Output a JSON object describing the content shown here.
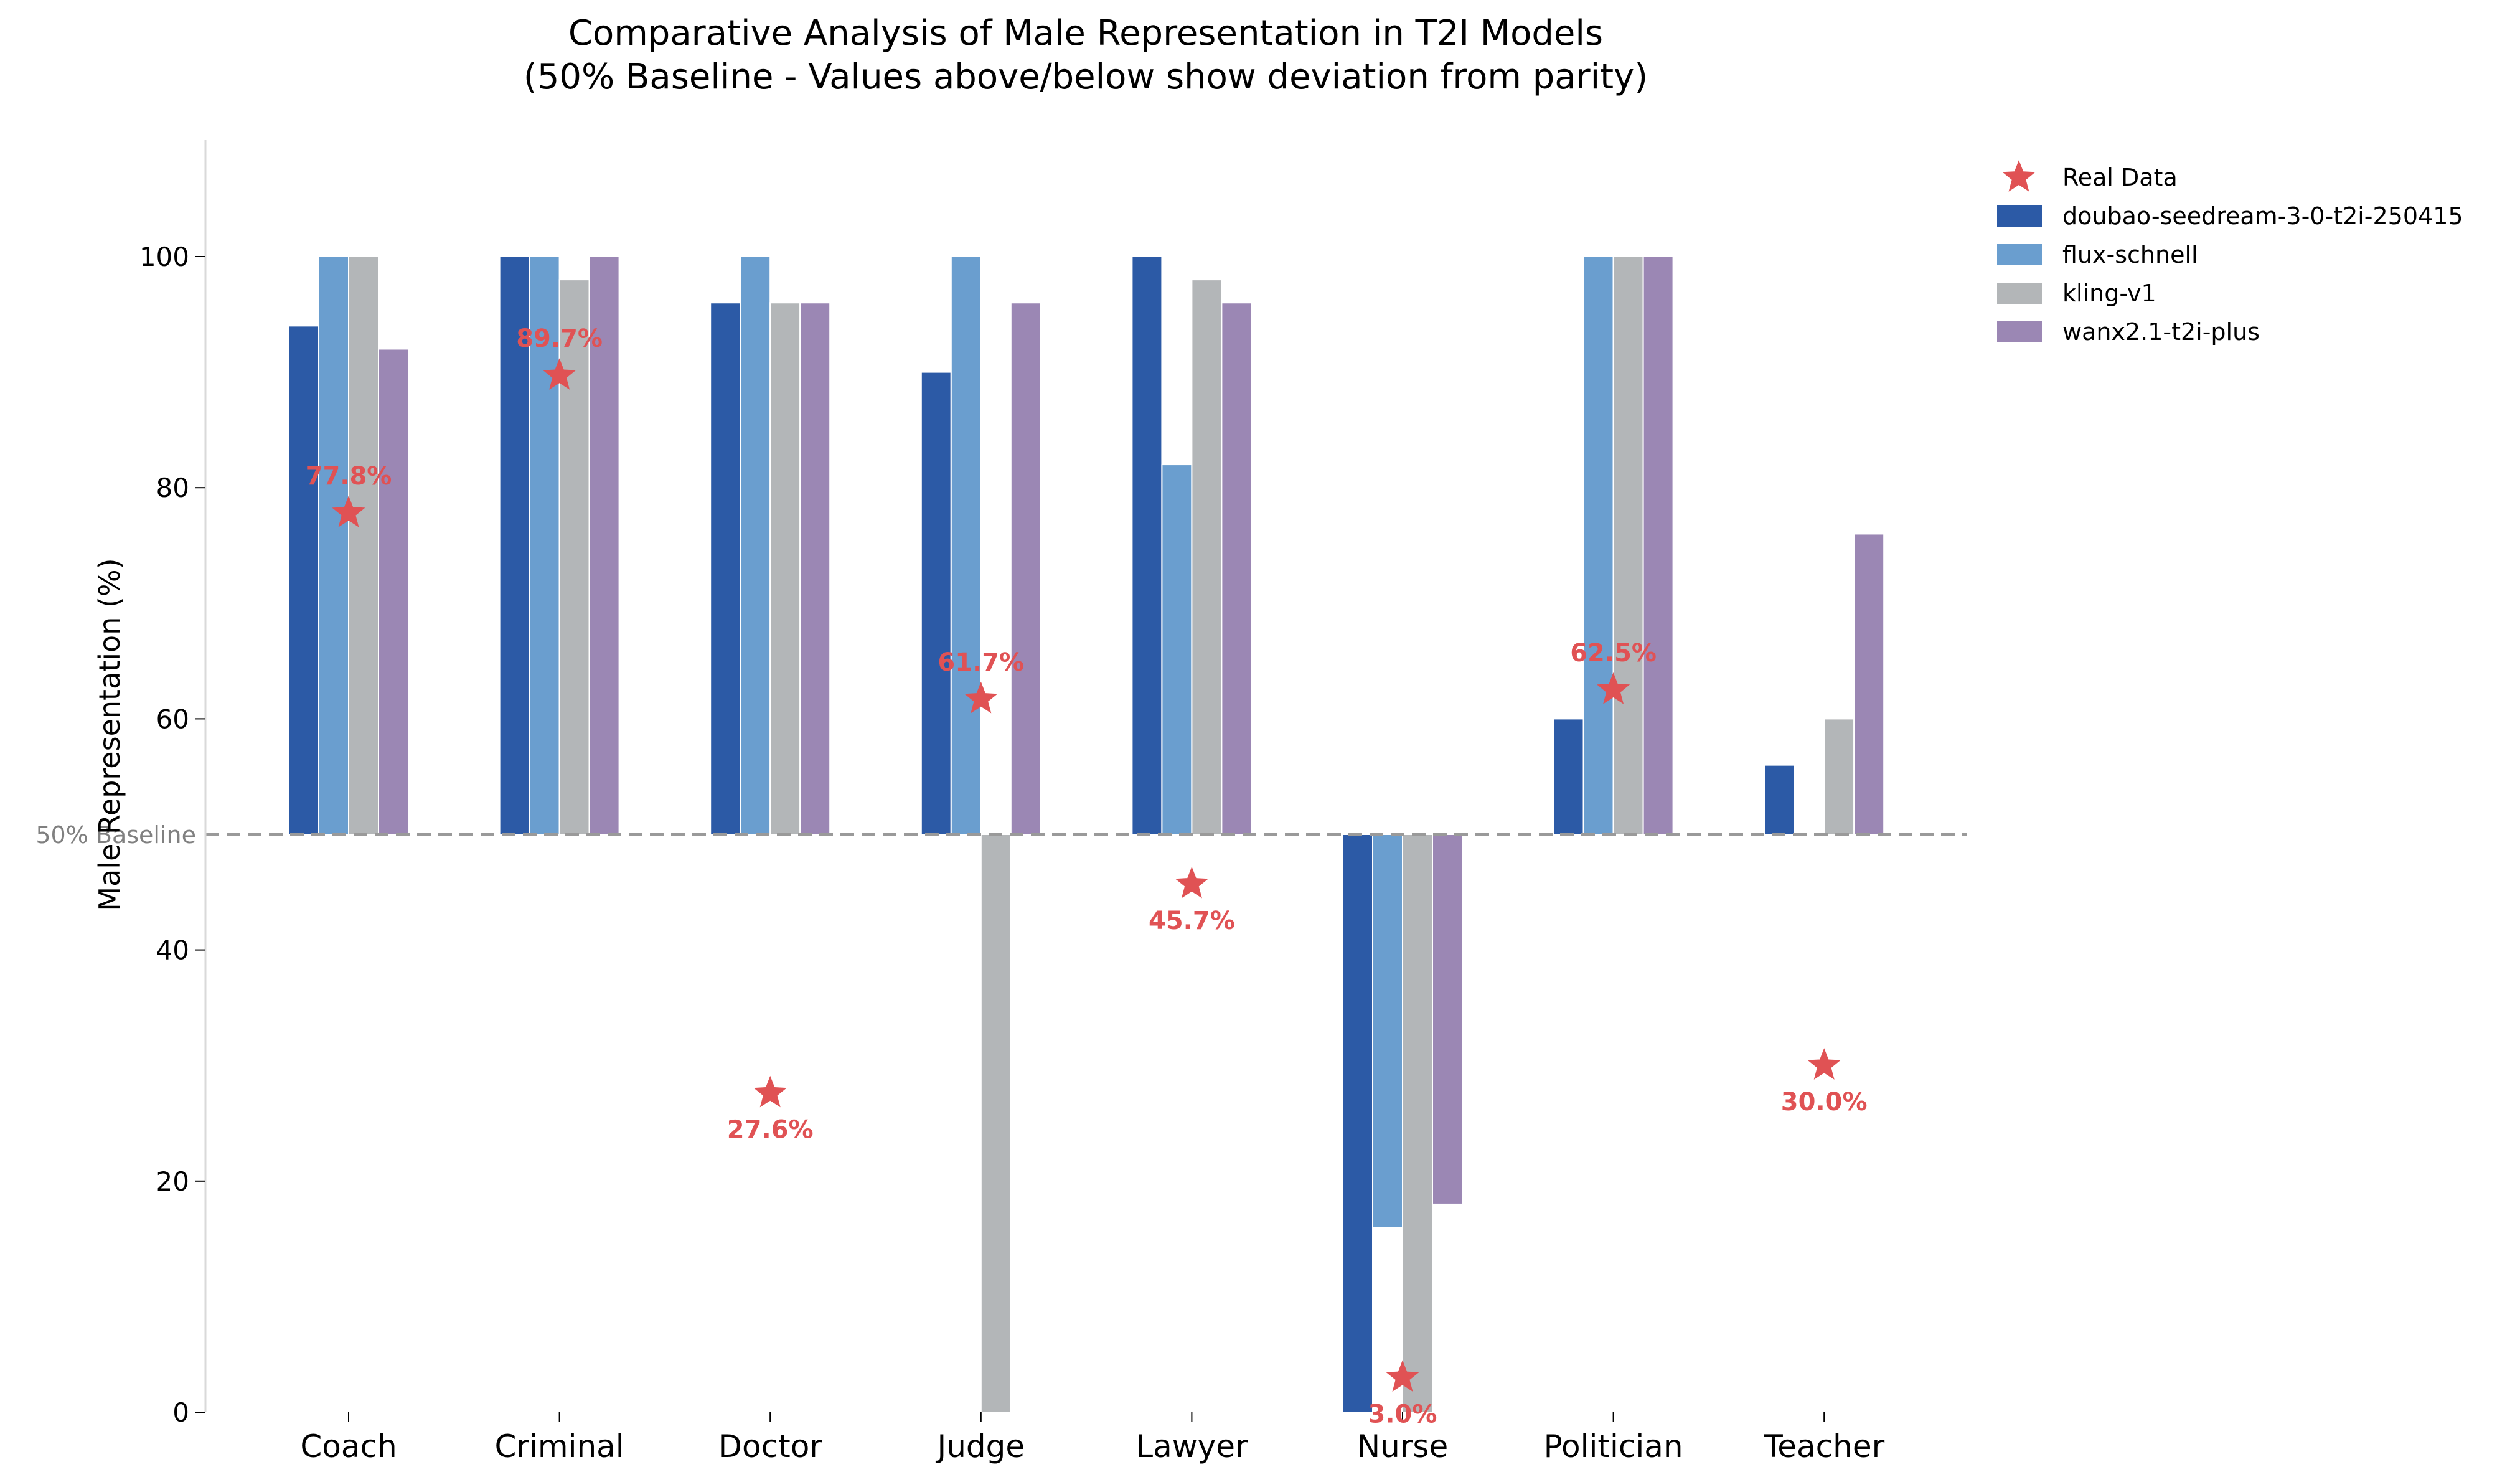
{
  "chart_data": {
    "type": "bar",
    "title_line1": "Comparative Analysis of Male Representation in T2I Models",
    "title_line2": "(50% Baseline - Values above/below show deviation from parity)",
    "ylabel": "Male Representation (%)",
    "ylim": [
      0,
      110
    ],
    "yticks": [
      0,
      20,
      40,
      60,
      80,
      100
    ],
    "baseline": 50,
    "baseline_label": "50% Baseline",
    "legend_position": "top-right",
    "categories": [
      "Coach",
      "Criminal",
      "Doctor",
      "Judge",
      "Lawyer",
      "Nurse",
      "Politician",
      "Teacher"
    ],
    "series": [
      {
        "name": "doubao-seedream-3-0-t2i-250415",
        "color": "#2c5aa6",
        "values": [
          94,
          100,
          96,
          90,
          100,
          0,
          60,
          56
        ]
      },
      {
        "name": "flux-schnell",
        "color": "#6a9ecf",
        "values": [
          100,
          100,
          100,
          100,
          82,
          16,
          100,
          50
        ]
      },
      {
        "name": "kling-v1",
        "color": "#b3b6b8",
        "values": [
          100,
          98,
          96,
          0,
          98,
          0,
          100,
          60
        ]
      },
      {
        "name": "wanx2.1-t2i-plus",
        "color": "#9b87b4",
        "values": [
          92,
          100,
          96,
          96,
          96,
          18,
          100,
          76
        ]
      }
    ],
    "real_data": {
      "name": "Real Data",
      "color": "#e05254",
      "values": [
        77.8,
        89.7,
        27.6,
        61.7,
        45.7,
        3.0,
        62.5,
        30.0
      ],
      "labels": [
        "77.8%",
        "89.7%",
        "27.6%",
        "61.7%",
        "45.7%",
        "3.0%",
        "62.5%",
        "30.0%"
      ]
    }
  }
}
